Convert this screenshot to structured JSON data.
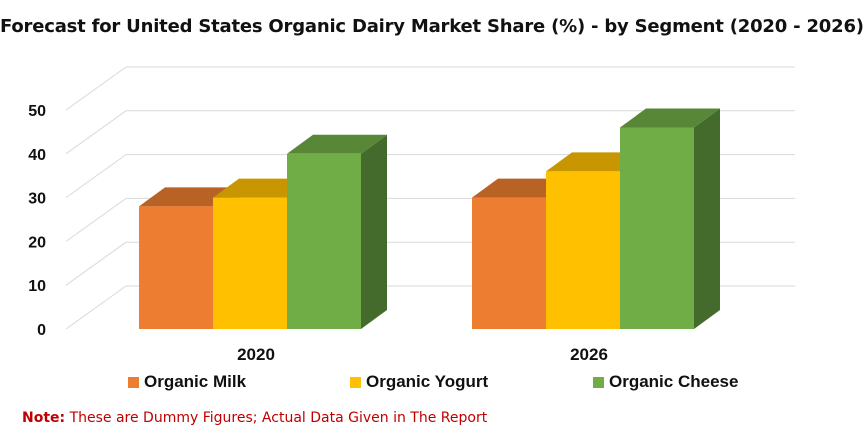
{
  "chart_data": {
    "type": "bar",
    "title": "Forecast for United States Organic Dairy Market Share (%) - by Segment (2020 - 2026)",
    "categories": [
      "2020",
      "2026"
    ],
    "series": [
      {
        "name": "Organic Milk",
        "values": [
          28,
          30
        ]
      },
      {
        "name": "Organic Yogurt",
        "values": [
          30,
          36
        ]
      },
      {
        "name": "Organic Cheese",
        "values": [
          40,
          46
        ]
      }
    ],
    "ylim": [
      0,
      50
    ],
    "yticks": [
      "0",
      "10",
      "20",
      "30",
      "40",
      "50"
    ],
    "grid": true,
    "legend": "bottom",
    "style": "3d-clustered-column"
  },
  "colors": {
    "milk": "#ed7d31",
    "yogurt": "#ffc000",
    "cheese": "#70ad47"
  },
  "note": {
    "label": "Note:",
    "text": " These are Dummy Figures; Actual Data Given in The Report"
  }
}
